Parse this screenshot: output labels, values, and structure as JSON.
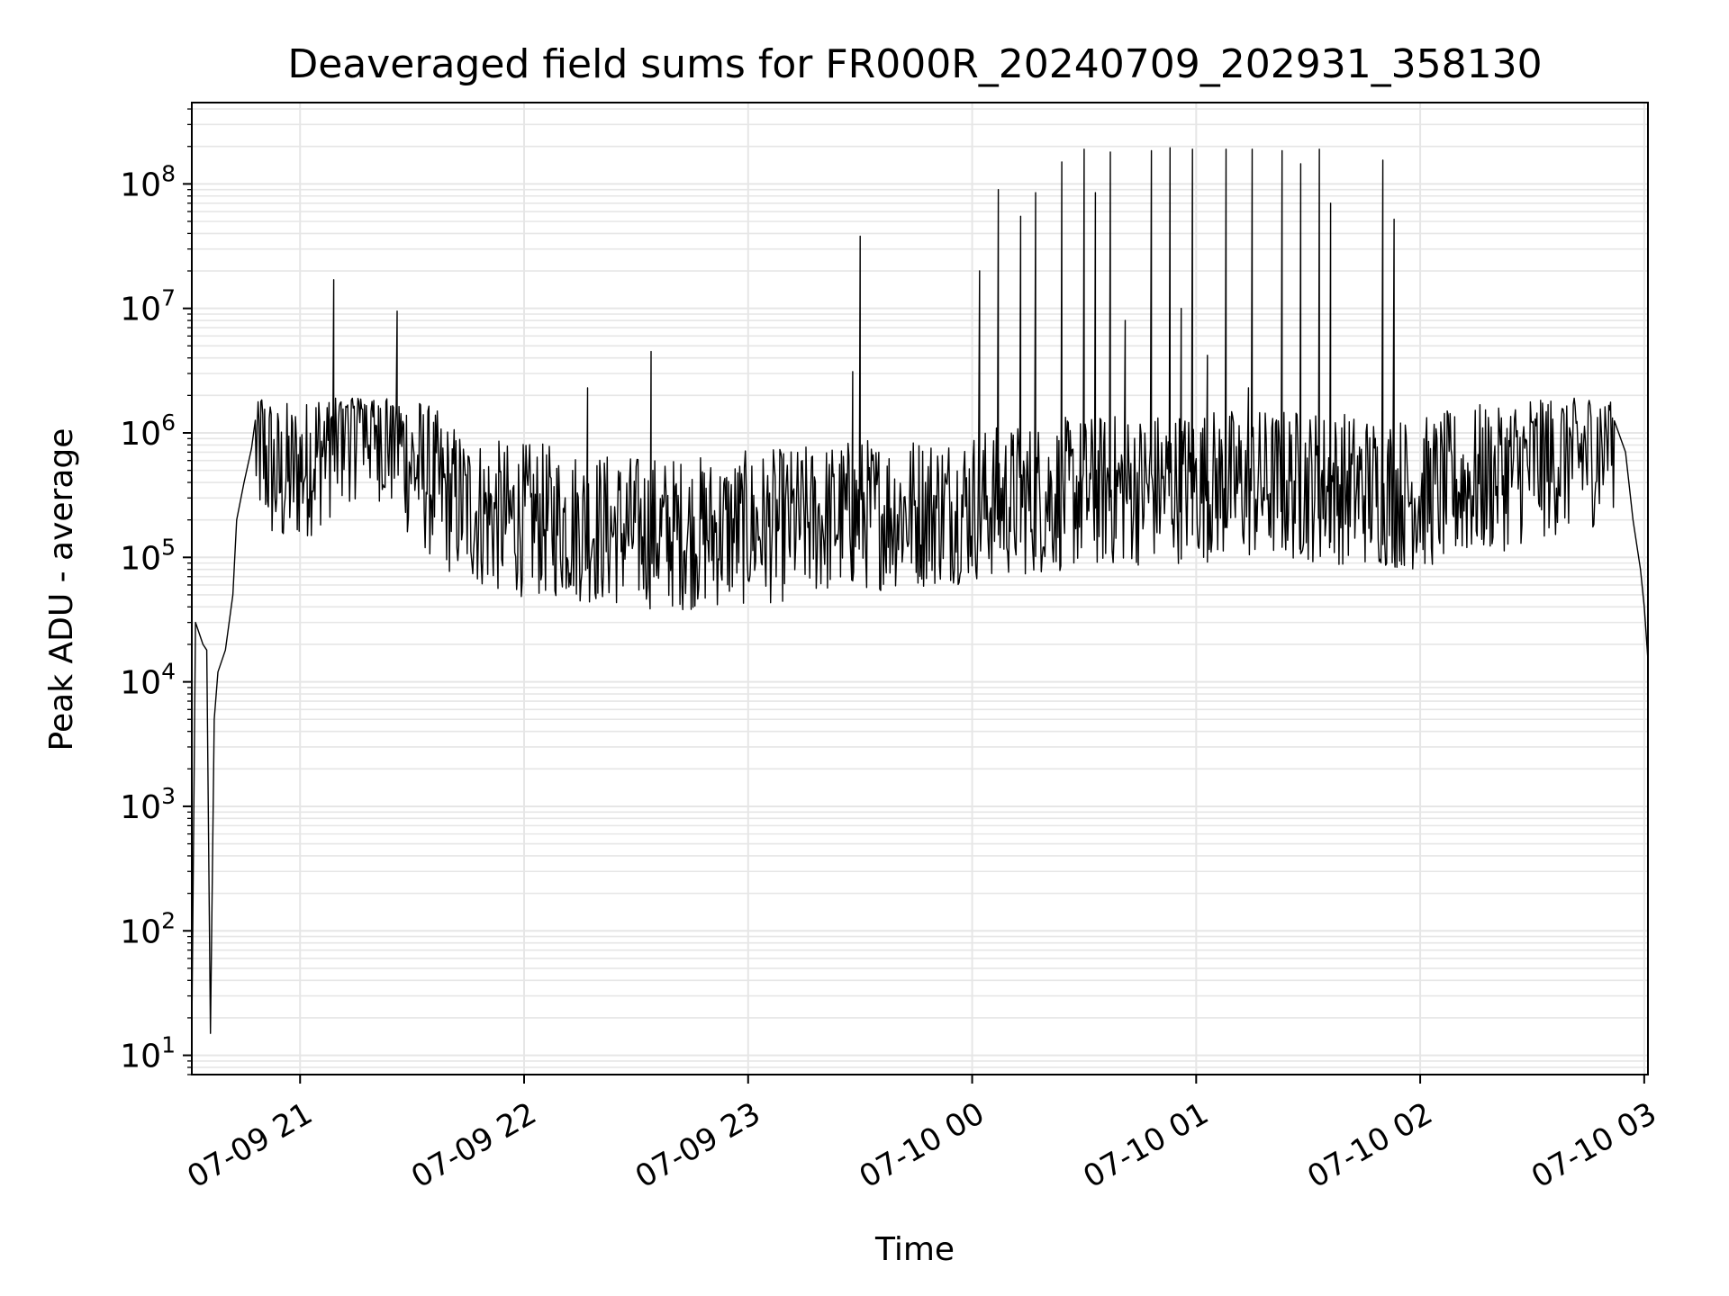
{
  "chart_data": {
    "type": "line",
    "title": "Deaveraged field sums for FR000R_20240709_202931_358130",
    "xlabel": "Time",
    "ylabel": "Peak ADU - average",
    "yscale": "log",
    "ylim": [
      7,
      450000000
    ],
    "xlim": [
      "2024-07-09 20:31",
      "2024-07-10 03:01"
    ],
    "grid": true,
    "line_color": "#000000",
    "grid_color": "#e6e6e6",
    "x_ticks": [
      {
        "value": "2024-07-09 21:00",
        "label": "07-09 21"
      },
      {
        "value": "2024-07-09 22:00",
        "label": "07-09 22"
      },
      {
        "value": "2024-07-09 23:00",
        "label": "07-09 23"
      },
      {
        "value": "2024-07-10 00:00",
        "label": "07-10 00"
      },
      {
        "value": "2024-07-10 01:00",
        "label": "07-10 01"
      },
      {
        "value": "2024-07-10 02:00",
        "label": "07-10 02"
      },
      {
        "value": "2024-07-10 03:00",
        "label": "07-10 03"
      }
    ],
    "y_ticks": [
      {
        "value": 10,
        "base": "10",
        "exp": "1"
      },
      {
        "value": 100,
        "base": "10",
        "exp": "2"
      },
      {
        "value": 1000,
        "base": "10",
        "exp": "3"
      },
      {
        "value": 10000,
        "base": "10",
        "exp": "4"
      },
      {
        "value": 100000,
        "base": "10",
        "exp": "5"
      },
      {
        "value": 1000000,
        "base": "10",
        "exp": "6"
      },
      {
        "value": 10000000,
        "base": "10",
        "exp": "7"
      },
      {
        "value": 100000000,
        "base": "10",
        "exp": "8"
      }
    ],
    "series": [
      {
        "x": [
          "2024-07-09 20:31",
          "2024-07-09 20:32",
          "2024-07-09 20:34",
          "2024-07-09 20:35",
          "2024-07-09 20:36",
          "2024-07-09 20:37",
          "2024-07-09 20:38",
          "2024-07-09 20:40",
          "2024-07-09 20:42",
          "2024-07-09 20:43",
          "2024-07-09 20:45",
          "2024-07-09 20:47",
          "2024-07-09 20:48",
          "2024-07-09 20:50",
          "2024-07-09 20:52",
          "2024-07-09 20:53",
          "2024-07-09 20:55",
          "2024-07-09 20:57",
          "2024-07-09 20:59",
          "2024-07-09 21:04",
          "2024-07-09 21:09",
          "2024-07-09 21:14",
          "2024-07-09 21:19",
          "2024-07-09 21:24",
          "2024-07-09 21:29",
          "2024-07-09 21:35",
          "2024-07-09 21:40",
          "2024-07-09 21:45",
          "2024-07-09 21:50",
          "2024-07-09 21:55",
          "2024-07-09 22:00",
          "2024-07-09 22:10",
          "2024-07-09 22:20",
          "2024-07-09 22:30",
          "2024-07-09 22:40",
          "2024-07-09 22:50",
          "2024-07-09 23:00",
          "2024-07-09 23:10",
          "2024-07-09 23:20",
          "2024-07-09 23:30",
          "2024-07-09 23:40",
          "2024-07-09 23:50",
          "2024-07-10 00:00",
          "2024-07-10 00:30",
          "2024-07-10 01:00",
          "2024-07-10 01:30",
          "2024-07-10 01:45",
          "2024-07-10 02:00",
          "2024-07-10 02:15",
          "2024-07-10 02:30",
          "2024-07-10 02:45",
          "2024-07-10 02:52",
          "2024-07-10 02:55",
          "2024-07-10 02:57",
          "2024-07-10 02:59",
          "2024-07-10 03:00",
          "2024-07-10 03:01"
        ],
        "y": [
          15,
          30000,
          20000,
          18000,
          15,
          5000,
          12000,
          18000,
          50000,
          200000,
          400000,
          750000,
          800000,
          700000,
          550000,
          450000,
          400000,
          450000,
          500000,
          650000,
          900000,
          1200000,
          1300000,
          1000000,
          600000,
          400000,
          300000,
          250000,
          220000,
          200000,
          200000,
          190000,
          170000,
          160000,
          155000,
          160000,
          170000,
          180000,
          200000,
          220000,
          230000,
          240000,
          260000,
          330000,
          380000,
          380000,
          350000,
          320000,
          400000,
          550000,
          700000,
          850000,
          700000,
          200000,
          80000,
          40000,
          15000
        ]
      }
    ],
    "spikes": [
      {
        "x": "2024-07-09 21:09",
        "y": 17000000
      },
      {
        "x": "2024-07-09 21:26",
        "y": 9500000
      },
      {
        "x": "2024-07-09 22:17",
        "y": 2300000
      },
      {
        "x": "2024-07-09 22:34",
        "y": 4500000
      },
      {
        "x": "2024-07-09 23:28",
        "y": 3100000
      },
      {
        "x": "2024-07-09 23:30",
        "y": 38000000
      },
      {
        "x": "2024-07-10 00:02",
        "y": 20000000
      },
      {
        "x": "2024-07-10 00:07",
        "y": 90000000
      },
      {
        "x": "2024-07-10 00:13",
        "y": 55000000
      },
      {
        "x": "2024-07-10 00:17",
        "y": 85000000
      },
      {
        "x": "2024-07-10 00:24",
        "y": 150000000
      },
      {
        "x": "2024-07-10 00:30",
        "y": 190000000
      },
      {
        "x": "2024-07-10 00:33",
        "y": 85000000
      },
      {
        "x": "2024-07-10 00:37",
        "y": 180000000
      },
      {
        "x": "2024-07-10 00:41",
        "y": 8000000
      },
      {
        "x": "2024-07-10 00:48",
        "y": 185000000
      },
      {
        "x": "2024-07-10 00:53",
        "y": 195000000
      },
      {
        "x": "2024-07-10 00:56",
        "y": 10000000
      },
      {
        "x": "2024-07-10 00:59",
        "y": 190000000
      },
      {
        "x": "2024-07-10 01:03",
        "y": 4200000
      },
      {
        "x": "2024-07-10 01:08",
        "y": 190000000
      },
      {
        "x": "2024-07-10 01:14",
        "y": 2300000
      },
      {
        "x": "2024-07-10 01:15",
        "y": 190000000
      },
      {
        "x": "2024-07-10 01:23",
        "y": 185000000
      },
      {
        "x": "2024-07-10 01:28",
        "y": 145000000
      },
      {
        "x": "2024-07-10 01:33",
        "y": 190000000
      },
      {
        "x": "2024-07-10 01:36",
        "y": 70000000
      },
      {
        "x": "2024-07-10 01:50",
        "y": 155000000
      },
      {
        "x": "2024-07-10 01:53",
        "y": 52000000
      }
    ]
  }
}
